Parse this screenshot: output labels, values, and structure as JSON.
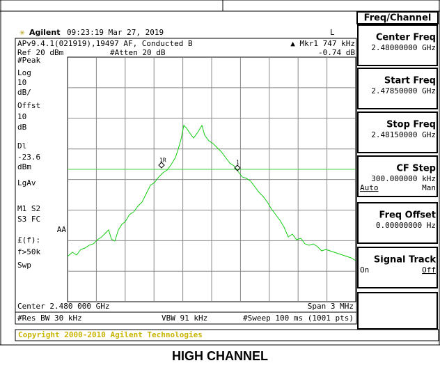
{
  "header": {
    "brand": "Agilent",
    "timestamp": "09:23:19  Mar 27, 2019",
    "mode": "L"
  },
  "info": {
    "version": "APv9.4.1(021919),19497 AF, Conducted B",
    "marker": "▲ Mkr1  747 kHz",
    "ref": "Ref 20 dBm",
    "atten": "#Atten 20 dB",
    "marker_value": "-0.74 dB"
  },
  "left_labels": [
    "#Peak",
    "Log",
    "10",
    "dB/",
    "Offst",
    "10",
    "dB",
    "Dl",
    "-23.6",
    "dBm",
    "LgAv",
    "M1  S2",
    "S3  FC",
    "AA",
    "£(f):",
    "f>50k",
    "Swp"
  ],
  "markers": [
    "1R",
    "1"
  ],
  "footer": {
    "center": "Center 2.480 000 GHz",
    "span": "Span 3 MHz",
    "rbw": "#Res BW 30 kHz",
    "vbw": "VBW 91 kHz",
    "sweep": "#Sweep 100 ms (1001 pts)"
  },
  "menu": {
    "title": "Freq/Channel",
    "keys": [
      {
        "label": "Center Freq",
        "value": "2.48000000 GHz"
      },
      {
        "label": "Start Freq",
        "value": "2.47850000 GHz"
      },
      {
        "label": "Stop Freq",
        "value": "2.48150000 GHz"
      },
      {
        "label": "CF Step",
        "value": "300.000000 kHz",
        "left": "Auto",
        "right": "Man"
      },
      {
        "label": "Freq Offset",
        "value": "0.00000000  Hz"
      },
      {
        "label": "Signal Track",
        "left": "On",
        "right": "Off"
      }
    ]
  },
  "copyright": "Copyright 2000-2010 Agilent Technologies",
  "caption": "HIGH CHANNEL"
}
